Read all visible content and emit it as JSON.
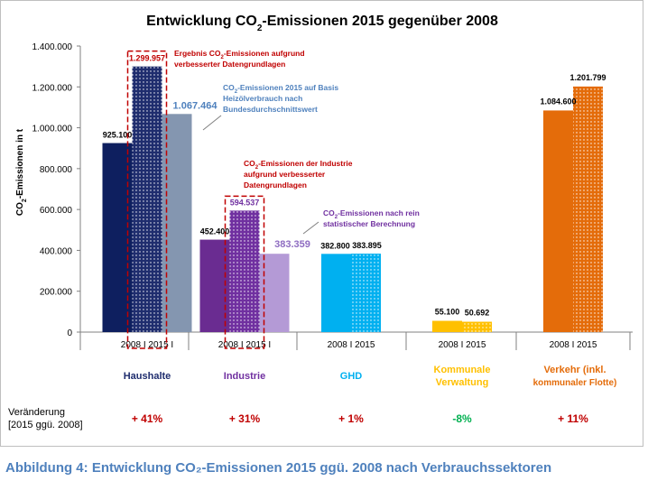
{
  "chart_data": {
    "type": "bar",
    "title": "Entwicklung CO₂-Emissionen 2015 gegenüber 2008",
    "ylabel": "CO₂-Emissionen in t",
    "ylim": [
      0,
      1400000
    ],
    "yticks": [
      "0",
      "200.000",
      "400.000",
      "600.000",
      "800.000",
      "1.000.000",
      "1.200.000",
      "1.400.000"
    ],
    "groups": [
      {
        "name": "Haushalte",
        "xtick": "2008 I 2015 I",
        "color": "#1f2d6e",
        "change": "+ 41%",
        "bars": [
          {
            "label": "2008",
            "value": 925100,
            "value_label": "925.100",
            "color": "#0e1f5f",
            "pattern": "solid"
          },
          {
            "label": "2015 I",
            "value": 1299957,
            "value_label": "1.299.957",
            "color": "#1f2d6e",
            "pattern": "dots"
          },
          {
            "label": "2015",
            "value": 1067464,
            "value_label": "1.067.464",
            "color": "#8496b0",
            "pattern": "solid"
          }
        ]
      },
      {
        "name": "Industrie",
        "xtick": "2008 I 2015 I",
        "color": "#7030a0",
        "change": "+ 31%",
        "bars": [
          {
            "label": "2008",
            "value": 452400,
            "value_label": "452.400",
            "color": "#6a2c91",
            "pattern": "solid"
          },
          {
            "label": "2015 I",
            "value": 594537,
            "value_label": "594.537",
            "color": "#7030a0",
            "pattern": "dots"
          },
          {
            "label": "2015",
            "value": 383359,
            "value_label": "383.359",
            "color": "#b49ad6",
            "pattern": "solid"
          }
        ]
      },
      {
        "name": "GHD",
        "xtick": "2008 I 2015",
        "color": "#00b0f0",
        "change": "+ 1%",
        "bars": [
          {
            "label": "2008",
            "value": 382800,
            "value_label": "382.800",
            "color": "#00b0f0",
            "pattern": "solid"
          },
          {
            "label": "2015",
            "value": 383895,
            "value_label": "383.895",
            "color": "#00b0f0",
            "pattern": "dots"
          }
        ]
      },
      {
        "name": "Kommunale Verwaltung",
        "name_lines": [
          "Kommunale",
          "Verwaltung"
        ],
        "xtick": "2008 I 2015",
        "color": "#ffc000",
        "change": "-8%",
        "bars": [
          {
            "label": "2008",
            "value": 55100,
            "value_label": "55.100",
            "color": "#ffc000",
            "pattern": "solid"
          },
          {
            "label": "2015",
            "value": 50692,
            "value_label": "50.692",
            "color": "#ffc000",
            "pattern": "dots"
          }
        ]
      },
      {
        "name": "Verkehr (inkl. kommunaler Flotte)",
        "name_lines": [
          "Verkehr (inkl.",
          "kommunaler Flotte)"
        ],
        "xtick": "2008 I 2015",
        "color": "#e46c0a",
        "change": "+ 11%",
        "bars": [
          {
            "label": "2008",
            "value": 1084600,
            "value_label": "1.084.600",
            "color": "#e46c0a",
            "pattern": "solid"
          },
          {
            "label": "2015",
            "value": 1201799,
            "value_label": "1.201.799",
            "color": "#e46c0a",
            "pattern": "dots"
          }
        ]
      }
    ],
    "annotations": [
      {
        "id": "haushalte-datengrundlagen",
        "lines": [
          "Ergebnis CO₂-Emissionen aufgrund",
          "verbesserter  Datengrundlagen"
        ],
        "color": "#c00000"
      },
      {
        "id": "haushalte-basis",
        "lines": [
          "CO₂-Emissionen 2015 auf Basis",
          "Heizölverbrauch nach",
          "Bundesdurchschnittswert"
        ],
        "color": "#4f81bd"
      },
      {
        "id": "industrie-datengrundlagen",
        "lines": [
          "CO₂-Emissionen der  Industrie",
          "aufgrund verbesserter",
          "Datengrundlagen"
        ],
        "color": "#c00000"
      },
      {
        "id": "industrie-statistisch",
        "lines": [
          "CO₂-Emissionen nach rein",
          "statistischer Berechnung"
        ],
        "color": "#7030a0"
      }
    ],
    "change_row_label": [
      "Veränderung",
      "[2015 ggü. 2008]"
    ],
    "change_colors": {
      "up": "#c00000",
      "down": "#00b050"
    }
  },
  "caption": "Abbildung 4: Entwicklung CO₂-Emissionen 2015 ggü. 2008 nach Verbrauchssektoren"
}
